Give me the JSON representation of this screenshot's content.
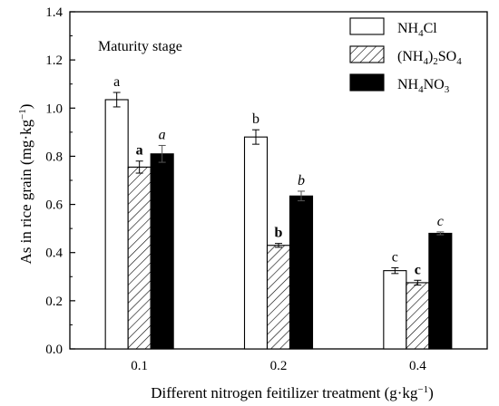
{
  "colors": {
    "NH4Cl": "#ffffff",
    "NH42SO4": "hatched",
    "NH4NO3": "#000000",
    "axis": "#000000"
  },
  "chart_data": {
    "type": "bar",
    "xlabel_text": "Different nitrogen feitilizer treatment (g·kg",
    "xlabel_sup": "−1",
    "xlabel_close": ")",
    "ylabel_text": "As in rice grain (mg·kg",
    "ylabel_sup": "−1",
    "ylabel_close": ")",
    "ylim": [
      0,
      1.4
    ],
    "yticks": [
      "0.0",
      "0.2",
      "0.4",
      "0.6",
      "0.8",
      "1.0",
      "1.2",
      "1.4"
    ],
    "categories": [
      "0.1",
      "0.2",
      "0.4"
    ],
    "annotation": "Maturity stage",
    "legend_position": "top-right",
    "series": [
      {
        "key": "NH4Cl",
        "name_parts": [
          "NH",
          "4",
          "Cl"
        ],
        "fill": "white",
        "values": [
          1.035,
          0.88,
          0.325
        ],
        "errors": [
          0.03,
          0.03,
          0.012
        ],
        "labels": [
          "a",
          "b",
          "c"
        ],
        "label_style": "normal"
      },
      {
        "key": "NH42SO4",
        "name_parts": [
          "(NH",
          "4",
          ")",
          "2",
          "SO",
          "4"
        ],
        "fill": "hatch",
        "values": [
          0.755,
          0.43,
          0.275
        ],
        "errors": [
          0.025,
          0.008,
          0.01
        ],
        "labels": [
          "a",
          "b",
          "c"
        ],
        "label_style": "bold"
      },
      {
        "key": "NH4NO3",
        "name_parts": [
          "NH",
          "4",
          "NO",
          "3"
        ],
        "fill": "black",
        "values": [
          0.81,
          0.635,
          0.48
        ],
        "errors": [
          0.035,
          0.02,
          0.006
        ],
        "labels": [
          "a",
          "b",
          "c"
        ],
        "label_style": "italic"
      }
    ]
  }
}
